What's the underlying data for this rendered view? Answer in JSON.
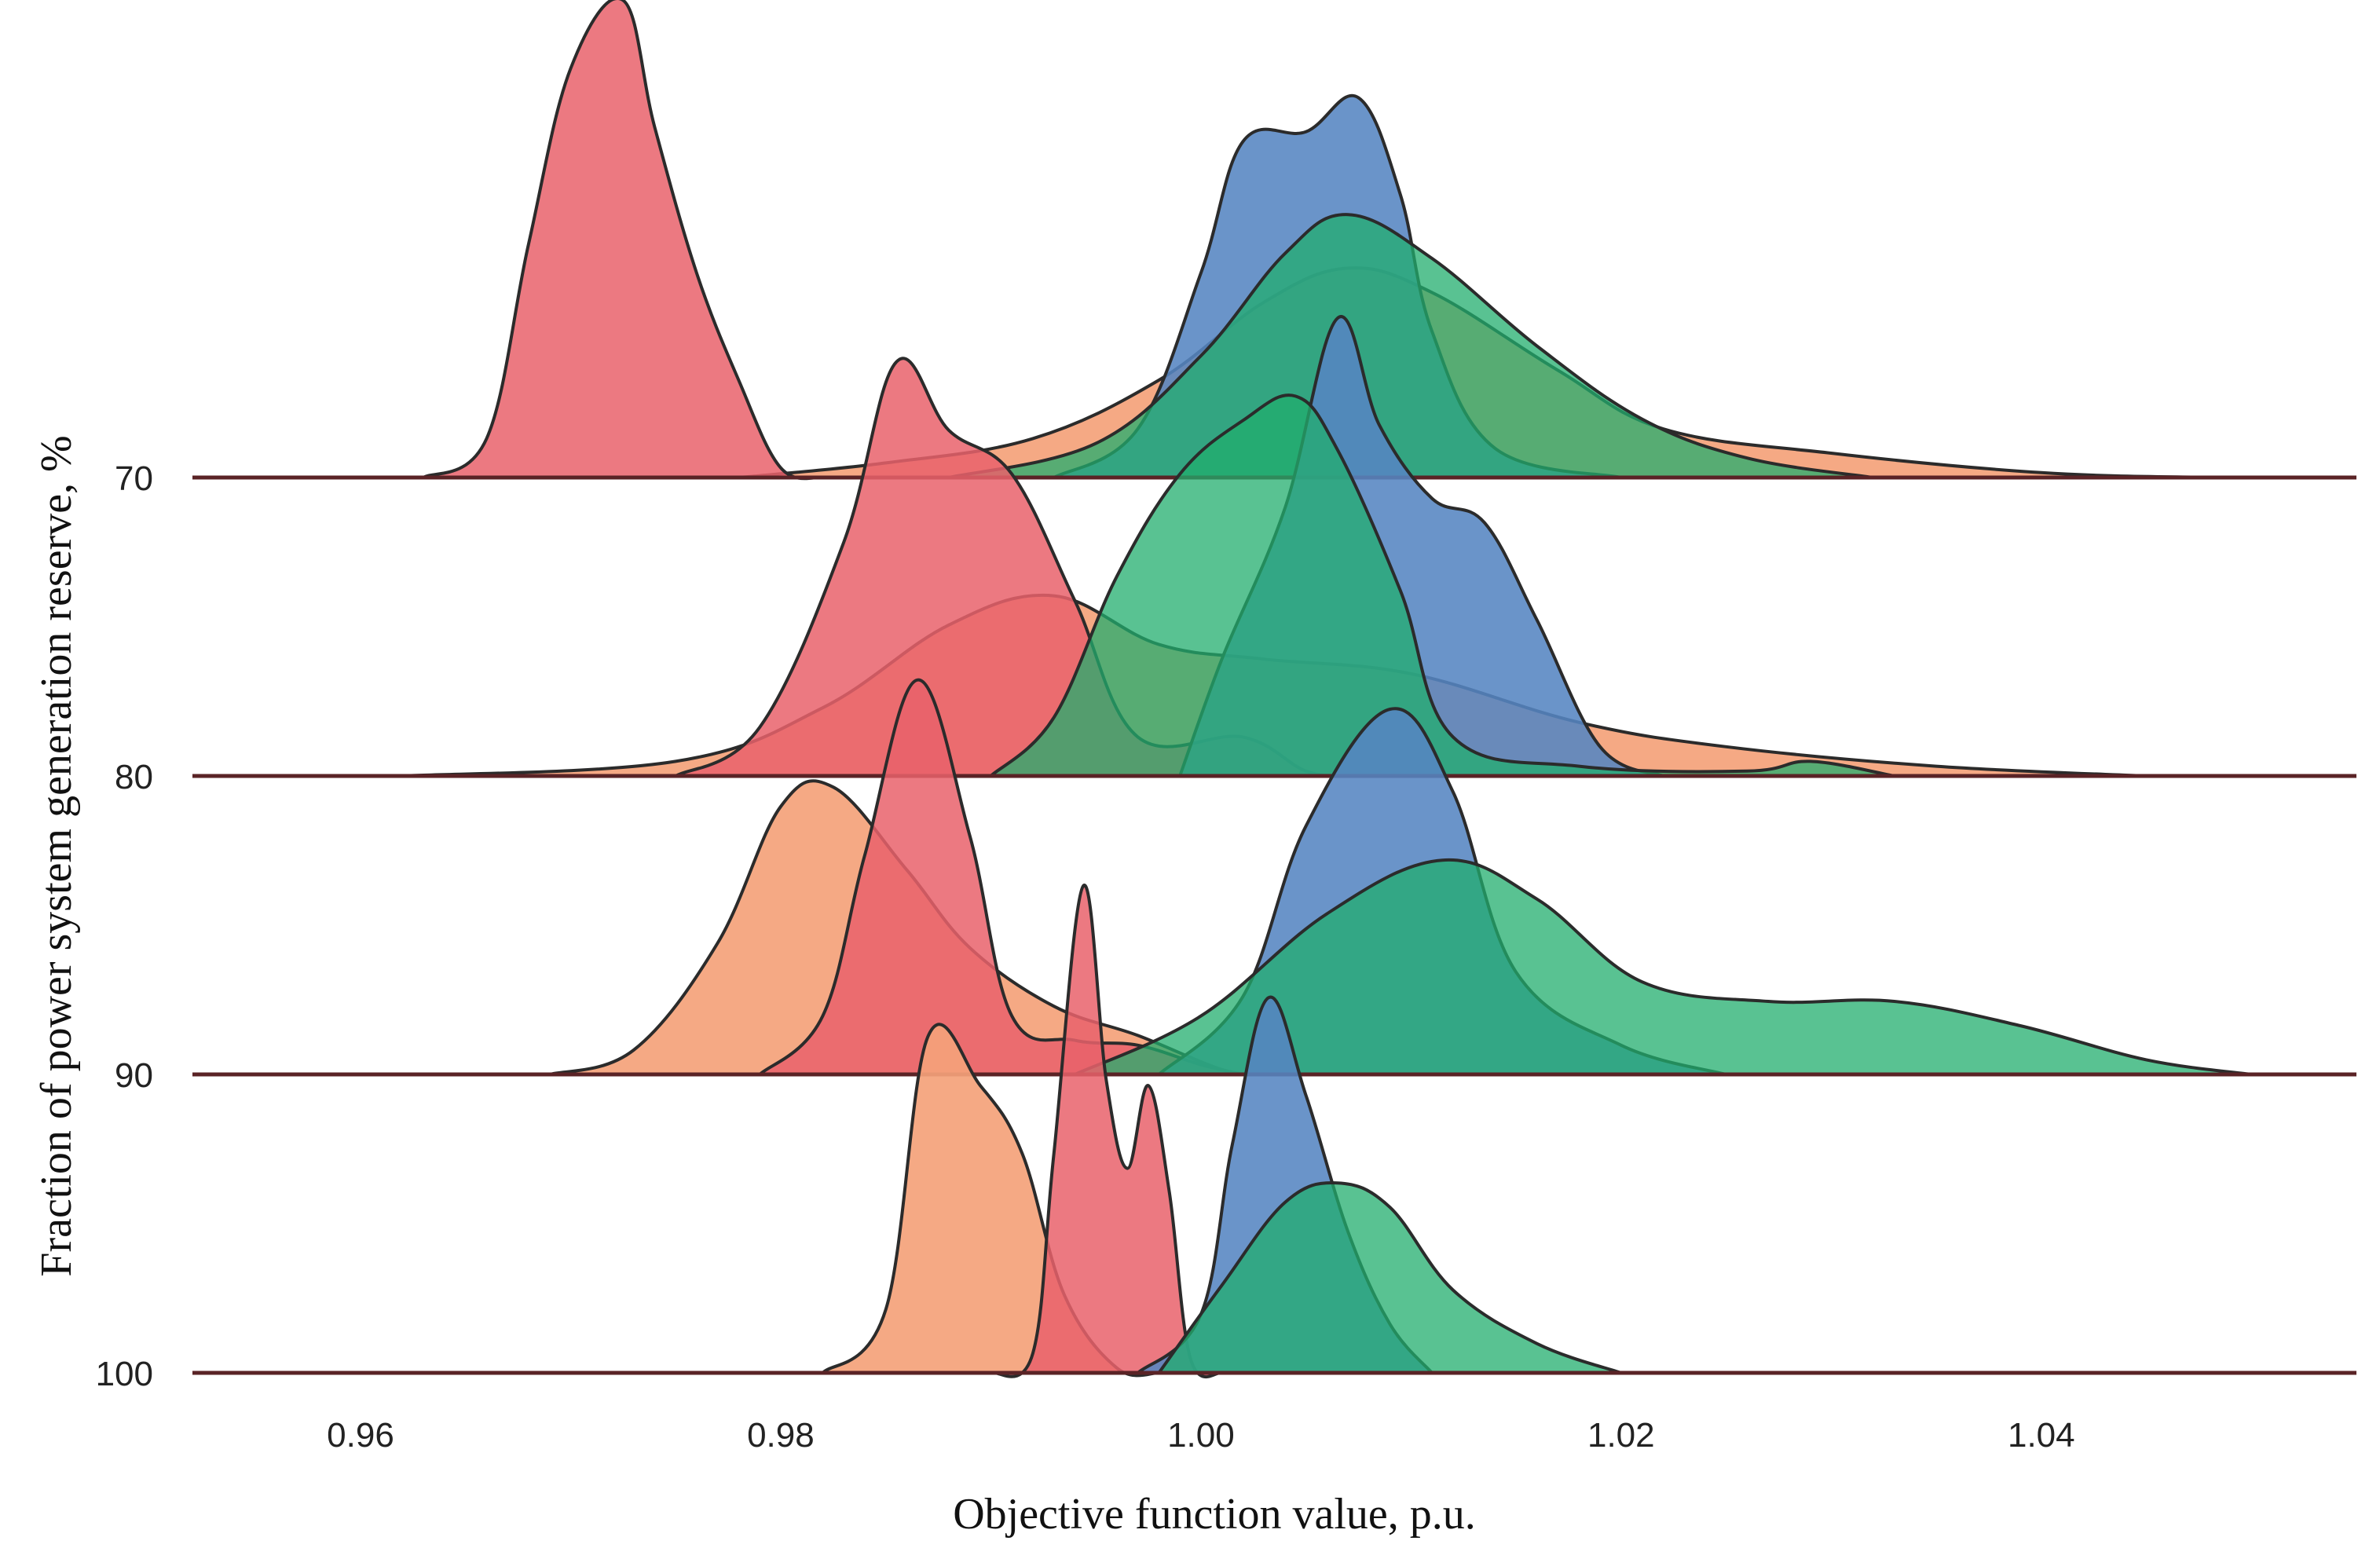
{
  "chart_data": {
    "type": "ridgeline",
    "xlabel": "Objective function value, p.u.",
    "ylabel": "Fraction of power system generation reserve, %",
    "xlim": [
      0.952,
      1.055
    ],
    "x_ticks": [
      0.96,
      0.98,
      1.0,
      1.02,
      1.04
    ],
    "x_tick_labels": [
      "0.96",
      "0.98",
      "1.00",
      "1.02",
      "1.04"
    ],
    "ridge_categories": [
      "70",
      "80",
      "90",
      "100"
    ],
    "series_colors": {
      "orange": "#f4a27a",
      "red": "#e9616b",
      "blue": "#5585c1",
      "green": "#22ad6d"
    },
    "ridges": [
      {
        "category": "70",
        "densities": [
          {
            "series": "orange",
            "points": [
              [
                0.978,
                0
              ],
              [
                0.985,
                0.03
              ],
              [
                0.992,
                0.08
              ],
              [
                0.998,
                0.2
              ],
              [
                1.003,
                0.36
              ],
              [
                1.007,
                0.43
              ],
              [
                1.011,
                0.38
              ],
              [
                1.017,
                0.22
              ],
              [
                1.022,
                0.1
              ],
              [
                1.03,
                0.05
              ],
              [
                1.04,
                0.01
              ],
              [
                1.048,
                0
              ]
            ]
          },
          {
            "series": "red",
            "points": [
              [
                0.963,
                0
              ],
              [
                0.966,
                0.08
              ],
              [
                0.968,
                0.48
              ],
              [
                0.97,
                0.84
              ],
              [
                0.9725,
                0.98
              ],
              [
                0.974,
                0.72
              ],
              [
                0.976,
                0.42
              ],
              [
                0.978,
                0.2
              ],
              [
                0.98,
                0.02
              ],
              [
                0.982,
                0
              ]
            ]
          },
          {
            "series": "blue",
            "points": [
              [
                0.993,
                0
              ],
              [
                0.997,
                0.1
              ],
              [
                1.0,
                0.42
              ],
              [
                1.002,
                0.69
              ],
              [
                1.005,
                0.71
              ],
              [
                1.0075,
                0.78
              ],
              [
                1.0095,
                0.58
              ],
              [
                1.011,
                0.3
              ],
              [
                1.014,
                0.06
              ],
              [
                1.02,
                0
              ]
            ]
          },
          {
            "series": "green",
            "points": [
              [
                0.988,
                0
              ],
              [
                0.995,
                0.07
              ],
              [
                1.0,
                0.25
              ],
              [
                1.004,
                0.46
              ],
              [
                1.007,
                0.54
              ],
              [
                1.011,
                0.45
              ],
              [
                1.016,
                0.27
              ],
              [
                1.021,
                0.12
              ],
              [
                1.026,
                0.04
              ],
              [
                1.032,
                0
              ]
            ]
          }
        ]
      },
      {
        "category": "80",
        "densities": [
          {
            "series": "orange",
            "points": [
              [
                0.962,
                0
              ],
              [
                0.975,
                0.03
              ],
              [
                0.982,
                0.14
              ],
              [
                0.988,
                0.31
              ],
              [
                0.993,
                0.37
              ],
              [
                0.998,
                0.27
              ],
              [
                1.003,
                0.24
              ],
              [
                1.01,
                0.21
              ],
              [
                1.018,
                0.11
              ],
              [
                1.025,
                0.06
              ],
              [
                1.035,
                0.02
              ],
              [
                1.045,
                0
              ]
            ]
          },
          {
            "series": "red",
            "points": [
              [
                0.975,
                0
              ],
              [
                0.979,
                0.1
              ],
              [
                0.983,
                0.48
              ],
              [
                0.9855,
                0.85
              ],
              [
                0.988,
                0.71
              ],
              [
                0.991,
                0.62
              ],
              [
                0.994,
                0.36
              ],
              [
                0.997,
                0.08
              ],
              [
                1.002,
                0.08
              ],
              [
                1.005,
                0.01
              ],
              [
                1.007,
                0
              ]
            ]
          },
          {
            "series": "blue",
            "points": [
              [
                0.999,
                0
              ],
              [
                1.001,
                0.24
              ],
              [
                1.004,
                0.55
              ],
              [
                1.0065,
                0.94
              ],
              [
                1.0085,
                0.72
              ],
              [
                1.011,
                0.57
              ],
              [
                1.0135,
                0.52
              ],
              [
                1.016,
                0.32
              ],
              [
                1.019,
                0.06
              ],
              [
                1.022,
                0
              ]
            ]
          },
          {
            "series": "green",
            "points": [
              [
                0.99,
                0
              ],
              [
                0.993,
                0.12
              ],
              [
                0.996,
                0.41
              ],
              [
                0.999,
                0.62
              ],
              [
                1.002,
                0.73
              ],
              [
                1.0045,
                0.78
              ],
              [
                1.0065,
                0.67
              ],
              [
                1.0095,
                0.38
              ],
              [
                1.012,
                0.08
              ],
              [
                1.018,
                0.02
              ],
              [
                1.026,
                0.01
              ],
              [
                1.029,
                0.03
              ],
              [
                1.033,
                0
              ]
            ]
          }
        ]
      },
      {
        "category": "90",
        "densities": [
          {
            "series": "orange",
            "points": [
              [
                0.969,
                0
              ],
              [
                0.973,
                0.05
              ],
              [
                0.977,
                0.27
              ],
              [
                0.98,
                0.55
              ],
              [
                0.9825,
                0.59
              ],
              [
                0.986,
                0.42
              ],
              [
                0.989,
                0.26
              ],
              [
                0.993,
                0.14
              ],
              [
                0.997,
                0.08
              ],
              [
                1.001,
                0.01
              ],
              [
                1.003,
                0
              ]
            ]
          },
          {
            "series": "red",
            "points": [
              [
                0.979,
                0
              ],
              [
                0.982,
                0.12
              ],
              [
                0.984,
                0.45
              ],
              [
                0.9865,
                0.81
              ],
              [
                0.989,
                0.49
              ],
              [
                0.991,
                0.12
              ],
              [
                0.994,
                0.07
              ],
              [
                0.997,
                0.06
              ],
              [
                1.0,
                0.02
              ],
              [
                1.002,
                0
              ]
            ]
          },
          {
            "series": "blue",
            "points": [
              [
                0.998,
                0
              ],
              [
                1.002,
                0.16
              ],
              [
                1.005,
                0.51
              ],
              [
                1.009,
                0.75
              ],
              [
                1.012,
                0.58
              ],
              [
                1.015,
                0.21
              ],
              [
                1.02,
                0.06
              ],
              [
                1.025,
                0
              ]
            ]
          },
          {
            "series": "green",
            "points": [
              [
                0.994,
                0
              ],
              [
                1.0,
                0.12
              ],
              [
                1.006,
                0.33
              ],
              [
                1.0115,
                0.44
              ],
              [
                1.016,
                0.36
              ],
              [
                1.021,
                0.19
              ],
              [
                1.027,
                0.15
              ],
              [
                1.033,
                0.15
              ],
              [
                1.039,
                0.1
              ],
              [
                1.045,
                0.03
              ],
              [
                1.05,
                0
              ]
            ]
          }
        ]
      },
      {
        "category": "100",
        "densities": [
          {
            "series": "orange",
            "points": [
              [
                0.982,
                0
              ],
              [
                0.985,
                0.13
              ],
              [
                0.987,
                0.69
              ],
              [
                0.9895,
                0.59
              ],
              [
                0.9915,
                0.45
              ],
              [
                0.9935,
                0.16
              ],
              [
                0.996,
                0.01
              ],
              [
                0.998,
                0
              ]
            ]
          },
          {
            "series": "red",
            "points": [
              [
                0.99,
                0
              ],
              [
                0.992,
                0.04
              ],
              [
                0.993,
                0.45
              ],
              [
                0.9944,
                1.0
              ],
              [
                0.9955,
                0.6
              ],
              [
                0.9965,
                0.42
              ],
              [
                0.9975,
                0.59
              ],
              [
                0.9985,
                0.37
              ],
              [
                0.9995,
                0.03
              ],
              [
                1.001,
                0
              ]
            ]
          },
          {
            "series": "blue",
            "points": [
              [
                0.997,
                0
              ],
              [
                1.0,
                0.12
              ],
              [
                1.0015,
                0.47
              ],
              [
                1.0032,
                0.77
              ],
              [
                1.005,
                0.57
              ],
              [
                1.007,
                0.29
              ],
              [
                1.009,
                0.1
              ],
              [
                1.011,
                0
              ]
            ]
          },
          {
            "series": "green",
            "points": [
              [
                0.998,
                0
              ],
              [
                1.001,
                0.18
              ],
              [
                1.004,
                0.35
              ],
              [
                1.0065,
                0.39
              ],
              [
                1.009,
                0.34
              ],
              [
                1.012,
                0.17
              ],
              [
                1.016,
                0.06
              ],
              [
                1.02,
                0
              ]
            ]
          }
        ]
      }
    ]
  }
}
